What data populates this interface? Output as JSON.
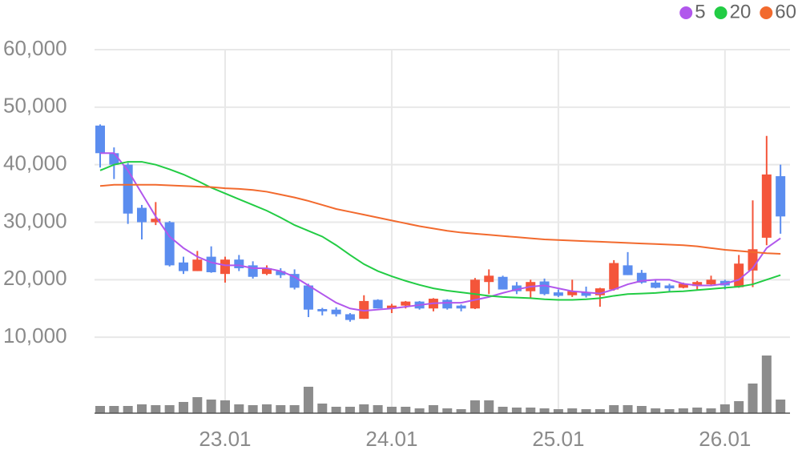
{
  "chart_data": {
    "type": "candlestick",
    "categories": [
      null,
      null,
      null,
      null,
      null,
      null,
      null,
      null,
      null,
      "23.01",
      null,
      null,
      null,
      null,
      null,
      null,
      null,
      null,
      null,
      null,
      null,
      "24.01",
      null,
      null,
      null,
      null,
      null,
      null,
      null,
      null,
      null,
      null,
      null,
      "25.01",
      null,
      null,
      null,
      null,
      null,
      null,
      null,
      null,
      null,
      null,
      null,
      "26.01",
      null,
      null,
      null,
      null
    ],
    "open": [
      46800,
      42000,
      40000,
      32500,
      30000,
      30000,
      23000,
      21500,
      24000,
      21000,
      23500,
      22500,
      21000,
      21500,
      21000,
      19000,
      14900,
      14800,
      14000,
      13200,
      16500,
      15000,
      15500,
      16200,
      15000,
      16500,
      15500,
      15000,
      19600,
      20500,
      19000,
      18000,
      19700,
      17800,
      17300,
      17800,
      17300,
      18300,
      22500,
      21200,
      19500,
      19000,
      18600,
      18900,
      19200,
      19800,
      18700,
      21600,
      27300,
      38000
    ],
    "high": [
      47000,
      43000,
      40300,
      33000,
      33500,
      30200,
      24000,
      25000,
      25800,
      24000,
      24300,
      23200,
      22500,
      22000,
      21800,
      19300,
      15100,
      15200,
      14200,
      17300,
      16600,
      15800,
      16300,
      16300,
      16800,
      16600,
      15700,
      20300,
      21800,
      20700,
      19600,
      20000,
      20200,
      18300,
      20000,
      18800,
      18600,
      23400,
      24800,
      21700,
      20000,
      19300,
      19500,
      19800,
      20700,
      20000,
      24300,
      33800,
      45000,
      40000
    ],
    "low": [
      39500,
      37500,
      29700,
      27000,
      29500,
      22300,
      21000,
      21500,
      21200,
      19500,
      21500,
      20200,
      20800,
      20300,
      18300,
      13500,
      13800,
      13600,
      12700,
      13200,
      15000,
      14200,
      15000,
      14800,
      14500,
      14800,
      14500,
      14900,
      17500,
      18300,
      17500,
      16800,
      17300,
      17000,
      17000,
      16900,
      15300,
      18100,
      20800,
      19300,
      18500,
      18000,
      18500,
      18200,
      19100,
      18300,
      18600,
      18700,
      26000,
      28000
    ],
    "close": [
      42000,
      40000,
      31500,
      30000,
      30600,
      22500,
      21500,
      23500,
      21300,
      23500,
      22000,
      20500,
      22000,
      20800,
      18600,
      14800,
      14500,
      14000,
      13000,
      16300,
      15000,
      15500,
      16200,
      15000,
      16700,
      15000,
      15000,
      20000,
      20700,
      18300,
      18000,
      19600,
      17500,
      17200,
      18000,
      17200,
      18500,
      22900,
      20800,
      19500,
      18600,
      18500,
      19300,
      19600,
      20000,
      19000,
      22800,
      25300,
      38300,
      31000
    ],
    "up_color": "#f4553a",
    "down_color": "#5b8def",
    "series": [
      {
        "name": "5",
        "color": "#b157ec",
        "values": [
          42000,
          42000,
          39000,
          35000,
          31000,
          27500,
          25500,
          24000,
          23000,
          22500,
          22500,
          22000,
          22000,
          21500,
          20500,
          19000,
          17500,
          16000,
          15000,
          14600,
          14800,
          15000,
          15300,
          15600,
          15900,
          16000,
          16000,
          16500,
          17000,
          17700,
          18300,
          18800,
          19000,
          18500,
          18000,
          17800,
          17600,
          18300,
          19200,
          19800,
          20000,
          20000,
          19300,
          19000,
          19000,
          19300,
          20000,
          22000,
          25500,
          27200
        ]
      },
      {
        "name": "20",
        "color": "#22cc44",
        "values": [
          39000,
          40000,
          40500,
          40500,
          40000,
          39200,
          38300,
          37200,
          36000,
          35000,
          34000,
          33000,
          32000,
          30800,
          29500,
          28500,
          27500,
          26000,
          24300,
          22700,
          21500,
          20600,
          19800,
          19100,
          18500,
          18100,
          17800,
          17500,
          17200,
          17000,
          16900,
          16800,
          16600,
          16500,
          16500,
          16600,
          16800,
          17200,
          17500,
          17600,
          17700,
          17900,
          18000,
          18200,
          18400,
          18600,
          18800,
          19200,
          20000,
          20800
        ]
      },
      {
        "name": "60",
        "color": "#f26a2e",
        "values": [
          36300,
          36500,
          36500,
          36500,
          36500,
          36400,
          36300,
          36200,
          36100,
          35900,
          35800,
          35600,
          35300,
          34800,
          34300,
          33700,
          33000,
          32300,
          31800,
          31300,
          30800,
          30300,
          29800,
          29300,
          28900,
          28500,
          28200,
          28000,
          27800,
          27600,
          27400,
          27200,
          27000,
          26900,
          26800,
          26700,
          26600,
          26500,
          26400,
          26300,
          26200,
          26100,
          26000,
          25800,
          25500,
          25200,
          25000,
          24800,
          24600,
          24500
        ]
      }
    ],
    "volume": [
      9,
      9,
      9,
      11,
      10,
      10,
      14,
      20,
      17,
      16,
      11,
      10,
      11,
      10,
      10,
      33,
      12,
      8,
      8,
      11,
      10,
      8,
      8,
      6,
      10,
      6,
      5,
      16,
      16,
      8,
      7,
      7,
      6,
      5,
      6,
      5,
      5,
      10,
      10,
      9,
      6,
      5,
      6,
      7,
      6,
      11,
      15,
      37,
      72,
      17
    ],
    "volume_color": "#8c8c8c",
    "ylim": [
      0,
      60000
    ],
    "yticks": [
      {
        "value": 10000,
        "label": "10,000"
      },
      {
        "value": 20000,
        "label": "20,000"
      },
      {
        "value": 30000,
        "label": "30,000"
      },
      {
        "value": 40000,
        "label": "40,000"
      },
      {
        "value": 50000,
        "label": "50,000"
      },
      {
        "value": 60000,
        "label": "60,000"
      }
    ],
    "grid": true,
    "legend": "top-right"
  }
}
